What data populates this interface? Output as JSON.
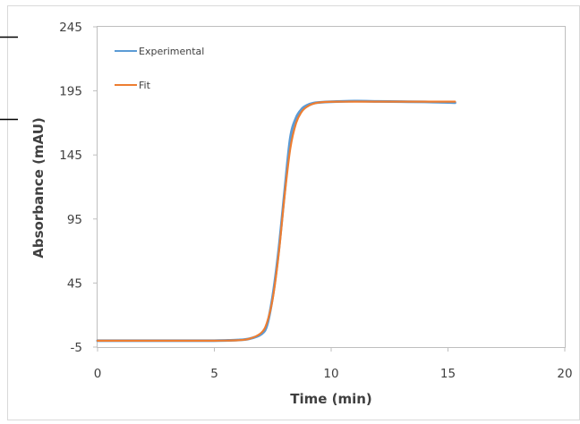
{
  "chart_data": {
    "type": "line",
    "xlabel": "Time (min)",
    "ylabel": "Absorbance (mAU)",
    "xlim": [
      0,
      20
    ],
    "ylim": [
      -5,
      245
    ],
    "x_ticks": [
      0,
      5,
      10,
      15,
      20
    ],
    "y_ticks": [
      -5,
      45,
      95,
      145,
      195,
      245
    ],
    "x_tick_labels": [
      "0",
      "5",
      "10",
      "15",
      "20"
    ],
    "y_tick_labels": [
      "-5",
      "45",
      "95",
      "145",
      "195",
      "245"
    ],
    "grid": false,
    "legend_position": "top-left",
    "series": [
      {
        "name": "Experimental",
        "color": "#5b9bd5",
        "x": [
          0,
          1,
          2,
          3,
          4,
          5,
          6,
          6.5,
          7,
          7.25,
          7.5,
          7.75,
          8,
          8.25,
          8.5,
          8.75,
          9,
          9.25,
          9.5,
          10,
          11,
          12,
          13,
          14,
          15,
          15.3
        ],
        "y": [
          0,
          0,
          0,
          0,
          0,
          0,
          0.5,
          1.5,
          5,
          12,
          35,
          70,
          115,
          158,
          174,
          181,
          184,
          185.5,
          186,
          186.5,
          187,
          186.8,
          186.6,
          186.4,
          186,
          185.8
        ]
      },
      {
        "name": "Fit",
        "color": "#ed7d31",
        "x": [
          0,
          1,
          2,
          3,
          4,
          5,
          6,
          6.5,
          7,
          7.25,
          7.5,
          7.75,
          8,
          8.25,
          8.5,
          8.75,
          9,
          9.25,
          9.5,
          10,
          11,
          12,
          13,
          14,
          15,
          15.3
        ],
        "y": [
          0,
          0,
          0,
          0,
          0,
          0,
          0.3,
          1.5,
          6,
          14,
          33,
          67,
          112,
          150,
          170,
          179,
          183,
          185,
          186,
          186.5,
          186.6,
          186.6,
          186.6,
          186.6,
          186.6,
          186.6
        ]
      }
    ]
  }
}
